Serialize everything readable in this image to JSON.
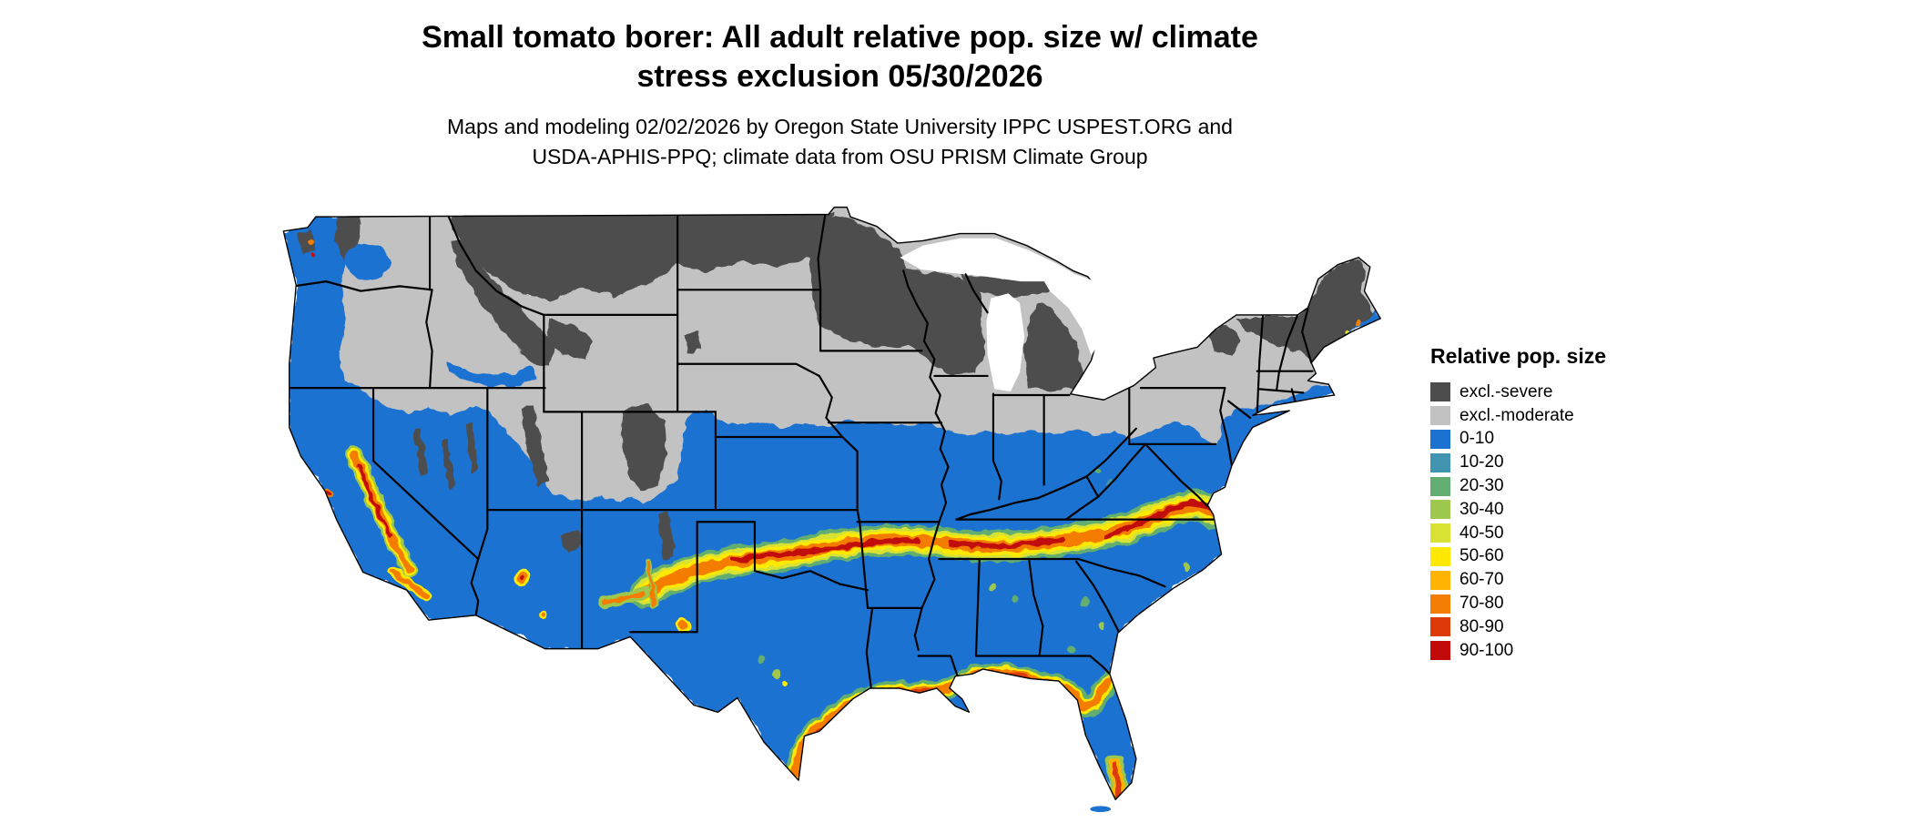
{
  "title": {
    "line1": "Small tomato borer: All adult relative pop. size w/ climate",
    "line2": "stress exclusion 05/30/2026"
  },
  "subtitle": {
    "line1": "Maps and modeling 02/02/2026 by Oregon State University IPPC USPEST.ORG and",
    "line2": "USDA-APHIS-PPQ; climate data from OSU PRISM Climate Group"
  },
  "legend": {
    "title": "Relative pop. size",
    "items": [
      {
        "label": "excl.-severe",
        "color": "#4d4d4d"
      },
      {
        "label": "excl.-moderate",
        "color": "#c2c2c2"
      },
      {
        "label": "0-10",
        "color": "#1b72d1"
      },
      {
        "label": "10-20",
        "color": "#4094b0"
      },
      {
        "label": "20-30",
        "color": "#62ad70"
      },
      {
        "label": "30-40",
        "color": "#9ec84e"
      },
      {
        "label": "40-50",
        "color": "#d7e234"
      },
      {
        "label": "50-60",
        "color": "#ffe903"
      },
      {
        "label": "60-70",
        "color": "#ffb403"
      },
      {
        "label": "70-80",
        "color": "#f47d04"
      },
      {
        "label": "80-90",
        "color": "#dc3b08"
      },
      {
        "label": "90-100",
        "color": "#c20a0a"
      }
    ]
  }
}
